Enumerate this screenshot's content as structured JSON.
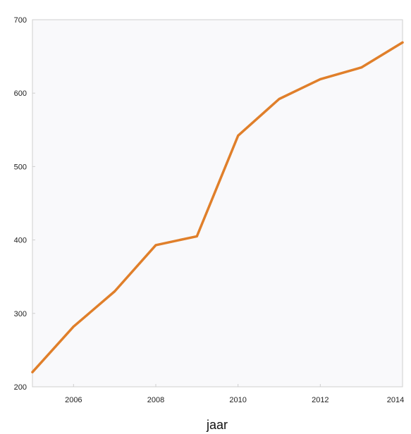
{
  "chart_data": {
    "type": "line",
    "title": "",
    "xlabel": "jaar",
    "ylabel": "",
    "x": [
      2005,
      2006,
      2007,
      2008,
      2009,
      2010,
      2011,
      2012,
      2013,
      2014
    ],
    "series": [
      {
        "name": "",
        "values": [
          220,
          282,
          330,
          393,
          405,
          542,
          592,
          619,
          635,
          669
        ]
      }
    ],
    "xlim": [
      2005,
      2014
    ],
    "ylim": [
      200,
      700
    ],
    "xticks": [
      2006,
      2008,
      2010,
      2012,
      2014
    ],
    "xtick_labels": [
      "2006",
      "2008",
      "2010",
      "2012",
      "2014"
    ],
    "yticks": [
      200,
      300,
      400,
      500,
      600,
      700
    ],
    "ytick_labels": [
      "200",
      "300",
      "400",
      "500",
      "600",
      "700"
    ],
    "grid": false,
    "legend": "none",
    "colors": {
      "line": "#e07f2a",
      "plot_background": "#f9f9fb",
      "frame": "#cfcfcf"
    }
  }
}
